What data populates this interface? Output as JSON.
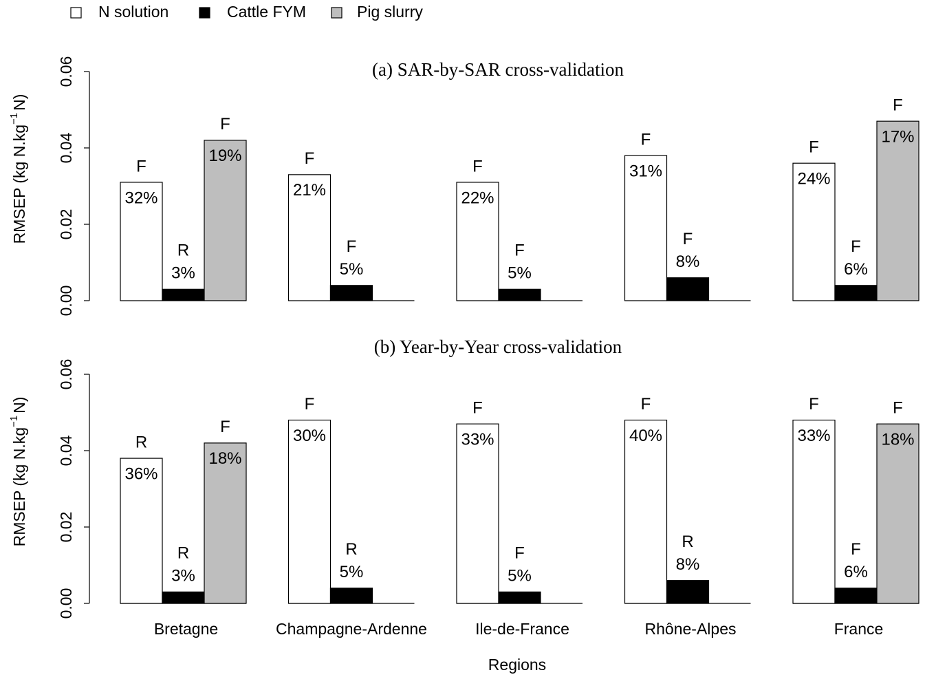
{
  "chart_data": [
    {
      "type": "bar",
      "title": "(a) SAR-by-SAR cross-validation",
      "ylabel": {
        "text": "RMSEP (kg N.kg",
        "sup": "−1",
        "after": "N)"
      },
      "ylim": [
        0,
        0.06
      ],
      "yticks": [
        {
          "value": 0,
          "label": "0.00"
        },
        {
          "value": 0.02,
          "label": "0.02"
        },
        {
          "value": 0.04,
          "label": "0.04"
        },
        {
          "value": 0.06,
          "label": "0.06"
        }
      ],
      "legend": "top-left",
      "series": [
        {
          "name": "N solution",
          "color": "#ffffff",
          "values": [
            0.031,
            0.033,
            0.031,
            0.038,
            0.036
          ],
          "flags": [
            "F",
            "F",
            "F",
            "F",
            "F"
          ],
          "percent_labels": [
            "32%",
            "21%",
            "22%",
            "31%",
            "24%"
          ]
        },
        {
          "name": "Cattle FYM",
          "color": "#000000",
          "values": [
            0.003,
            0.004,
            0.003,
            0.006,
            0.004
          ],
          "flags": [
            "R",
            "F",
            "F",
            "F",
            "F"
          ],
          "percent_labels": [
            "3%",
            "5%",
            "5%",
            "8%",
            "6%"
          ]
        },
        {
          "name": "Pig slurry",
          "color": "#bebebe",
          "values": [
            0.042,
            null,
            null,
            null,
            0.047
          ],
          "flags": [
            "F",
            null,
            null,
            null,
            "F"
          ],
          "percent_labels": [
            "19%",
            null,
            null,
            null,
            "17%"
          ]
        }
      ]
    },
    {
      "type": "bar",
      "title": "(b) Year-by-Year cross-validation",
      "ylabel": {
        "text": "RMSEP (kg N.kg",
        "sup": "−1",
        "after": "N)"
      },
      "xlabel": "Regions",
      "categories": [
        "Bretagne",
        "Champagne-Ardenne",
        "Ile-de-France",
        "Rhône-Alpes",
        "France"
      ],
      "ylim": [
        0,
        0.06
      ],
      "yticks": [
        {
          "value": 0,
          "label": "0.00"
        },
        {
          "value": 0.02,
          "label": "0.02"
        },
        {
          "value": 0.04,
          "label": "0.04"
        },
        {
          "value": 0.06,
          "label": "0.06"
        }
      ],
      "series": [
        {
          "color": "#ffffff",
          "values": [
            0.038,
            0.048,
            0.047,
            0.048,
            0.048
          ],
          "flags": [
            "R",
            "F",
            "F",
            "F",
            "F"
          ],
          "percent_labels": [
            "36%",
            "30%",
            "33%",
            "40%",
            "33%"
          ]
        },
        {
          "color": "#000000",
          "values": [
            0.003,
            0.004,
            0.003,
            0.006,
            0.004
          ],
          "flags": [
            "R",
            "R",
            "F",
            "R",
            "F"
          ],
          "percent_labels": [
            "3%",
            "5%",
            "5%",
            "8%",
            "6%"
          ]
        },
        {
          "color": "#bebebe",
          "values": [
            0.042,
            null,
            null,
            null,
            0.047
          ],
          "flags": [
            "F",
            null,
            null,
            null,
            "F"
          ],
          "percent_labels": [
            "18%",
            null,
            null,
            null,
            "18%"
          ]
        }
      ]
    }
  ]
}
